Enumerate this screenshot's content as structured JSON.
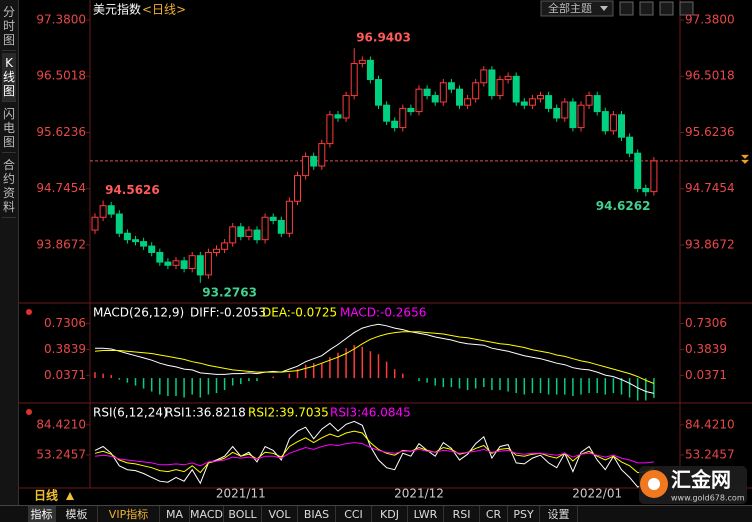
{
  "ui": {
    "sidebar": [
      "分时图",
      "K线图",
      "闪电图",
      "合约资料"
    ],
    "theme_select": "全部主题",
    "interval": "日线",
    "tabs": [
      "指标",
      "模板",
      "VIP指标",
      "MA",
      "MACD",
      "BOLL",
      "VOL",
      "BIAS",
      "CCI",
      "KDJ",
      "LWR",
      "RSI",
      "CR",
      "PSY",
      "设置"
    ],
    "watermark": {
      "brand": "汇金网",
      "url": "www.gold678.com"
    }
  },
  "chart_data": [
    {
      "type": "candlestick",
      "title": "美元指数",
      "subtitle": "<日线>",
      "categories": [
        null,
        null,
        null,
        null,
        null,
        null,
        null,
        null,
        null,
        null,
        null,
        null,
        null,
        null,
        null,
        null,
        null,
        null,
        "2021/11",
        null,
        null,
        null,
        null,
        null,
        null,
        null,
        null,
        null,
        null,
        null,
        null,
        null,
        null,
        null,
        null,
        null,
        null,
        null,
        null,
        null,
        "2021/12",
        null,
        null,
        null,
        null,
        null,
        null,
        null,
        null,
        null,
        null,
        null,
        null,
        null,
        null,
        null,
        null,
        null,
        null,
        null,
        null,
        null,
        "2022/01",
        null,
        null,
        null,
        null,
        null,
        null,
        null
      ],
      "open": [
        94.1,
        94.3,
        94.48,
        94.35,
        94.05,
        93.95,
        93.92,
        93.85,
        93.75,
        93.6,
        93.55,
        93.62,
        93.5,
        93.7,
        93.4,
        93.75,
        93.8,
        93.9,
        94.15,
        94.0,
        94.1,
        93.95,
        94.3,
        94.25,
        94.05,
        94.55,
        94.95,
        95.25,
        95.1,
        95.45,
        95.9,
        95.85,
        96.2,
        96.7,
        96.75,
        96.45,
        96.05,
        95.8,
        95.7,
        96.0,
        95.95,
        96.3,
        96.2,
        96.1,
        96.4,
        96.3,
        96.05,
        96.15,
        96.4,
        96.6,
        96.2,
        96.45,
        96.5,
        96.1,
        96.05,
        96.15,
        96.2,
        96.0,
        95.85,
        96.1,
        95.7,
        96.05,
        96.2,
        95.95,
        95.65,
        95.9,
        95.55,
        95.3,
        94.75,
        94.7
      ],
      "high": [
        94.36,
        94.5626,
        94.54,
        94.41,
        94.11,
        94.01,
        93.98,
        93.91,
        93.81,
        93.66,
        93.68,
        93.68,
        93.76,
        93.76,
        93.81,
        93.86,
        93.96,
        94.21,
        94.21,
        94.16,
        94.16,
        94.36,
        94.36,
        94.31,
        94.61,
        95.01,
        95.31,
        95.31,
        95.51,
        95.96,
        95.96,
        96.26,
        96.9403,
        96.81,
        96.81,
        96.51,
        96.11,
        95.86,
        96.06,
        96.06,
        96.36,
        96.36,
        96.26,
        96.46,
        96.46,
        96.36,
        96.21,
        96.46,
        96.66,
        96.66,
        96.51,
        96.56,
        96.56,
        96.16,
        96.21,
        96.26,
        96.26,
        96.06,
        96.16,
        96.16,
        96.11,
        96.26,
        96.26,
        96.01,
        95.96,
        95.96,
        95.61,
        95.36,
        94.81,
        95.24
      ],
      "low": [
        94.04,
        94.24,
        94.29,
        93.99,
        93.89,
        93.86,
        93.79,
        93.69,
        93.54,
        93.49,
        93.49,
        93.44,
        93.44,
        93.2763,
        93.34,
        93.69,
        93.74,
        93.84,
        93.94,
        93.94,
        93.89,
        93.89,
        94.19,
        93.99,
        93.99,
        94.49,
        94.89,
        95.04,
        95.04,
        95.39,
        95.79,
        95.79,
        96.14,
        96.64,
        96.39,
        95.99,
        95.74,
        95.64,
        95.64,
        95.89,
        95.89,
        96.14,
        96.04,
        96.04,
        96.24,
        95.99,
        95.99,
        96.09,
        96.34,
        96.14,
        96.14,
        96.39,
        96.04,
        95.99,
        95.99,
        96.09,
        95.94,
        95.79,
        95.79,
        95.64,
        95.64,
        95.99,
        95.89,
        95.59,
        95.59,
        95.49,
        95.24,
        94.69,
        94.6262,
        94.64
      ],
      "close": [
        94.3,
        94.48,
        94.35,
        94.05,
        93.95,
        93.92,
        93.85,
        93.75,
        93.6,
        93.55,
        93.62,
        93.5,
        93.7,
        93.4,
        93.75,
        93.8,
        93.9,
        94.15,
        94.0,
        94.1,
        93.95,
        94.3,
        94.25,
        94.05,
        94.55,
        94.95,
        95.25,
        95.1,
        95.45,
        95.9,
        95.85,
        96.2,
        96.7,
        96.75,
        96.45,
        96.05,
        95.8,
        95.7,
        96.0,
        95.95,
        96.3,
        96.2,
        96.1,
        96.4,
        96.3,
        96.05,
        96.15,
        96.4,
        96.6,
        96.2,
        96.45,
        96.5,
        96.1,
        96.05,
        96.15,
        96.2,
        96.0,
        95.85,
        96.1,
        95.7,
        96.05,
        96.2,
        95.95,
        95.65,
        95.9,
        95.55,
        95.3,
        94.75,
        94.7,
        95.18
      ],
      "up_color": "#ff3b3b",
      "down_color": "#00d080",
      "ylim": [
        93.008,
        97.505
      ],
      "yticks": [
        {
          "value": 97.38,
          "label": "97.3800"
        },
        96.5018,
        95.6236,
        94.7454,
        93.8672
      ]
    },
    {
      "type": "macd",
      "title": "MACD(26,12,9)",
      "up_color": "#ff3b3b",
      "down_color": "#00d080",
      "series": [
        {
          "name": "DIFF:-0.2053",
          "color": "#ffffff",
          "values": [
            0.4,
            0.4,
            0.39,
            0.36,
            0.33,
            0.3,
            0.27,
            0.24,
            0.2,
            0.17,
            0.15,
            0.12,
            0.11,
            0.07,
            0.06,
            0.05,
            0.05,
            0.06,
            0.06,
            0.07,
            0.06,
            0.08,
            0.09,
            0.08,
            0.12,
            0.16,
            0.22,
            0.26,
            0.3,
            0.38,
            0.45,
            0.53,
            0.61,
            0.67,
            0.7,
            0.72,
            0.7,
            0.67,
            0.65,
            0.62,
            0.6,
            0.58,
            0.55,
            0.53,
            0.51,
            0.48,
            0.46,
            0.45,
            0.44,
            0.4,
            0.38,
            0.36,
            0.33,
            0.3,
            0.28,
            0.26,
            0.23,
            0.2,
            0.18,
            0.14,
            0.12,
            0.11,
            0.08,
            0.04,
            0.02,
            -0.02,
            -0.07,
            -0.13,
            -0.18,
            -0.2053
          ]
        },
        {
          "name": "DEA:-0.0725",
          "color": "#ffff00",
          "values": [
            0.36,
            0.37,
            0.37,
            0.37,
            0.36,
            0.35,
            0.34,
            0.33,
            0.31,
            0.29,
            0.27,
            0.25,
            0.22,
            0.2,
            0.17,
            0.15,
            0.13,
            0.11,
            0.1,
            0.09,
            0.08,
            0.08,
            0.08,
            0.08,
            0.09,
            0.1,
            0.13,
            0.16,
            0.2,
            0.24,
            0.28,
            0.33,
            0.39,
            0.46,
            0.52,
            0.56,
            0.59,
            0.61,
            0.62,
            0.62,
            0.62,
            0.61,
            0.6,
            0.59,
            0.57,
            0.55,
            0.54,
            0.52,
            0.5,
            0.48,
            0.46,
            0.45,
            0.43,
            0.41,
            0.38,
            0.36,
            0.34,
            0.31,
            0.29,
            0.26,
            0.23,
            0.21,
            0.18,
            0.15,
            0.12,
            0.09,
            0.06,
            0.02,
            -0.03,
            -0.0725
          ]
        },
        {
          "name": "MACD:-0.2656",
          "color": "#ff00ff",
          "type": "bar",
          "values": [
            0.08,
            0.06,
            0.04,
            -0.02,
            -0.06,
            -0.1,
            -0.14,
            -0.18,
            -0.22,
            -0.24,
            -0.24,
            -0.26,
            -0.22,
            -0.26,
            -0.22,
            -0.2,
            -0.16,
            -0.1,
            -0.08,
            -0.04,
            -0.04,
            0.0,
            0.02,
            0.0,
            0.06,
            0.12,
            0.18,
            0.2,
            0.2,
            0.28,
            0.34,
            0.4,
            0.44,
            0.42,
            0.36,
            0.32,
            0.22,
            0.12,
            0.06,
            0.0,
            -0.04,
            -0.06,
            -0.1,
            -0.12,
            -0.12,
            -0.14,
            -0.16,
            -0.14,
            -0.12,
            -0.16,
            -0.16,
            -0.18,
            -0.2,
            -0.22,
            -0.2,
            -0.2,
            -0.22,
            -0.22,
            -0.22,
            -0.24,
            -0.22,
            -0.2,
            -0.2,
            -0.22,
            -0.2,
            -0.22,
            -0.26,
            -0.3,
            -0.3,
            -0.2656
          ]
        }
      ],
      "ylim": [
        -0.32,
        0.979
      ],
      "yticks": [
        0.7306,
        0.3839,
        0.0371
      ]
    },
    {
      "type": "line",
      "title": "RSI(6,12,24)",
      "series": [
        {
          "name": "RSI1:36.8218",
          "color": "#ffffff",
          "values": [
            58,
            62,
            55,
            42,
            38,
            37,
            34,
            30,
            26,
            25,
            30,
            26,
            38,
            24,
            45,
            48,
            52,
            62,
            52,
            56,
            46,
            62,
            58,
            48,
            70,
            78,
            82,
            70,
            80,
            86,
            78,
            85,
            88,
            84,
            62,
            48,
            40,
            38,
            55,
            52,
            65,
            58,
            52,
            66,
            60,
            48,
            54,
            65,
            72,
            50,
            62,
            64,
            45,
            44,
            50,
            53,
            45,
            40,
            55,
            36,
            56,
            62,
            48,
            38,
            52,
            38,
            30,
            20,
            22,
            36.8218
          ]
        },
        {
          "name": "RSI2:39.7035",
          "color": "#ffff00",
          "values": [
            55,
            57,
            54,
            48,
            45,
            44,
            42,
            40,
            37,
            36,
            38,
            36,
            42,
            35,
            45,
            47,
            50,
            56,
            52,
            54,
            49,
            56,
            55,
            51,
            62,
            67,
            71,
            66,
            71,
            75,
            72,
            76,
            78,
            76,
            66,
            59,
            55,
            53,
            58,
            57,
            61,
            58,
            56,
            61,
            59,
            54,
            56,
            60,
            63,
            55,
            59,
            60,
            53,
            52,
            54,
            55,
            52,
            50,
            55,
            47,
            54,
            57,
            52,
            48,
            52,
            46,
            42,
            35,
            36,
            39.7035
          ]
        },
        {
          "name": "RSI3:46.0845",
          "color": "#ff00ff",
          "values": [
            52,
            53,
            52,
            49,
            48,
            47,
            46,
            45,
            43,
            43,
            44,
            43,
            45,
            42,
            46,
            47,
            48,
            51,
            50,
            51,
            49,
            52,
            52,
            50,
            55,
            58,
            61,
            59,
            62,
            64,
            63,
            65,
            66,
            65,
            61,
            58,
            56,
            55,
            57,
            57,
            59,
            57,
            56,
            58,
            57,
            55,
            56,
            57,
            59,
            56,
            57,
            58,
            55,
            54,
            55,
            55,
            54,
            53,
            55,
            51,
            54,
            55,
            53,
            51,
            53,
            50,
            48,
            45,
            45,
            46.0845
          ]
        }
      ],
      "ylim": [
        19,
        105
      ],
      "yticks": [
        {
          "value": 84.421,
          "label": "84.4210"
        },
        53.2457
      ]
    }
  ]
}
